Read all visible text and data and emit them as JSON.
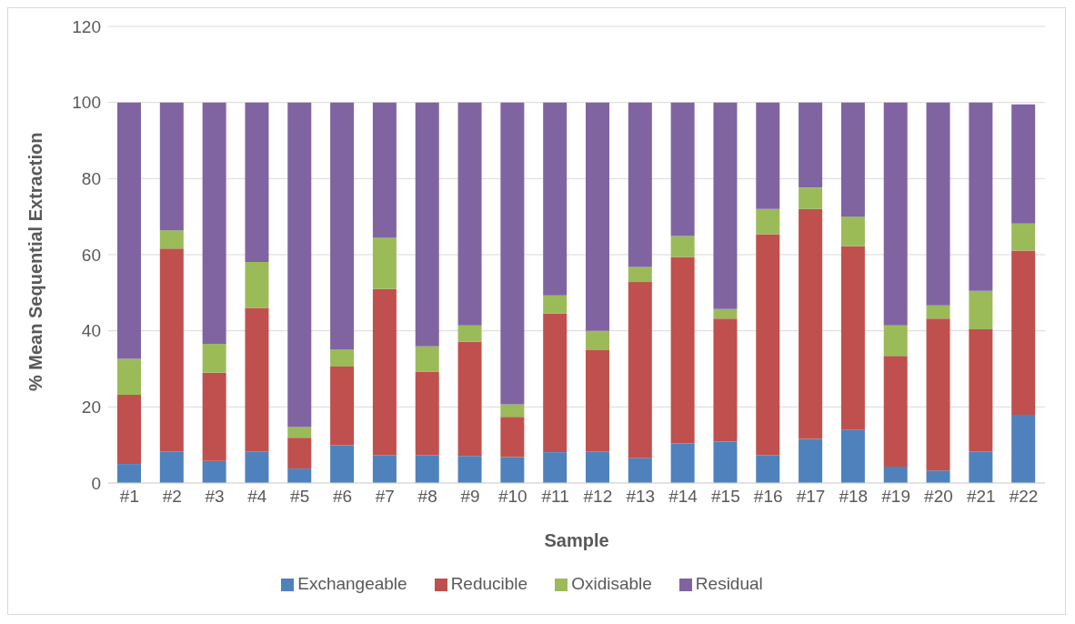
{
  "chart_data": {
    "type": "bar",
    "stacked": true,
    "xlabel": "Sample",
    "ylabel": "% Mean Sequential Extraction",
    "categories": [
      "#1",
      "#2",
      "#3",
      "#4",
      "#5",
      "#6",
      "#7",
      "#8",
      "#9",
      "#10",
      "#11",
      "#12",
      "#13",
      "#14",
      "#15",
      "#16",
      "#17",
      "#18",
      "#19",
      "#20",
      "#21",
      "#22"
    ],
    "series": [
      {
        "name": "Exchangeable",
        "color": "#4f81bd",
        "values": [
          5,
          8.3,
          5.8,
          8.3,
          3.8,
          9.9,
          7.3,
          7.3,
          7.1,
          6.8,
          8.1,
          8.3,
          6.6,
          10.4,
          10.9,
          7.3,
          11.6,
          13.9,
          4.3,
          3.3,
          8.3,
          17.9
        ]
      },
      {
        "name": "Reducible",
        "color": "#c0504d",
        "values": [
          18.2,
          53.3,
          23.2,
          37.7,
          8.1,
          20.7,
          43.7,
          22,
          30,
          10.6,
          36.4,
          26.6,
          46.2,
          49,
          32.3,
          58.1,
          60.4,
          48.3,
          29.1,
          39.9,
          32.1,
          43.2
        ]
      },
      {
        "name": "Oxidisable",
        "color": "#9bbb59",
        "values": [
          9.4,
          4.8,
          7.6,
          12.1,
          2.8,
          4.5,
          13.4,
          6.6,
          4.3,
          3.3,
          4.8,
          5.1,
          4,
          5.5,
          2.5,
          6.6,
          5.6,
          7.8,
          8,
          3.5,
          10.1,
          7.1
        ]
      },
      {
        "name": "Residual",
        "color": "#8064a2",
        "values": [
          67.4,
          33.6,
          63.4,
          41.9,
          85.3,
          64.9,
          35.6,
          64.1,
          58.6,
          79.3,
          50.7,
          60,
          43.2,
          35.1,
          54.3,
          28,
          22.4,
          30,
          58.6,
          53.3,
          49.5,
          31.3
        ]
      }
    ],
    "ylim": [
      0,
      120
    ],
    "yticks": [
      0,
      20,
      40,
      60,
      80,
      100,
      120
    ],
    "grid": "y",
    "legend": "bottom"
  }
}
